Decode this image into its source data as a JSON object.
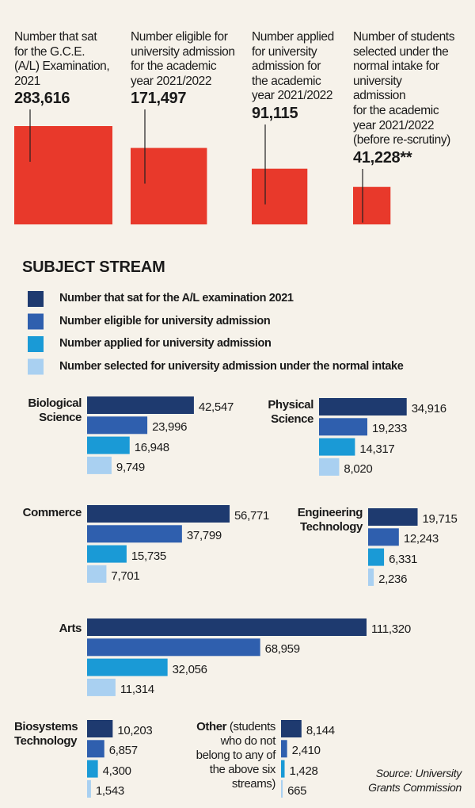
{
  "chart_data": [
    {
      "type": "bar",
      "categories": [
        "Number that sat\nfor the G.C.E.\n(A/L) Examination,\n2021",
        "Number eligible for\nuniversity admission\nfor the academic\nyear 2021/2022",
        "Number applied\nfor university\nadmission for\nthe academic\nyear 2021/2022",
        "Number of students\nselected under the\nnormal intake for\nuniversity\nadmission\nfor the academic\nyear 2021/2022\n(before re-scrutiny)"
      ],
      "values": [
        283616,
        171497,
        91115,
        41228
      ],
      "value_labels": [
        "283,616",
        "171,497",
        "91,115",
        "41,228**"
      ],
      "color": "#e8392b"
    },
    {
      "type": "hbar",
      "title": "SUBJECT STREAM",
      "categories": [
        "Biological\nScience",
        "Physical\nScience",
        "Commerce",
        "Engineering\nTechnology",
        "Arts",
        "Biosystems\nTechnology",
        "Other"
      ],
      "annotations": [
        "(students\nwho do not\nbelong to any of\nthe above six\nstreams)",
        "Source: University\nGrants Commission"
      ],
      "series": [
        {
          "name": "Number that sat for the A/L examination 2021",
          "color": "#1e3a6f",
          "values": [
            42547,
            34916,
            56771,
            19715,
            111320,
            10203,
            8144
          ],
          "value_labels": [
            "42,547",
            "34,916",
            "56,771",
            "19,715",
            "111,320",
            "10,203",
            "8,144"
          ]
        },
        {
          "name": "Number eligible for university admission",
          "color": "#2f5fae",
          "values": [
            23996,
            19233,
            37799,
            12243,
            68959,
            6857,
            2410
          ],
          "value_labels": [
            "23,996",
            "19,233",
            "37,799",
            "12,243",
            "68,959",
            "6,857",
            "2,410"
          ]
        },
        {
          "name": "Number applied for university admission",
          "color": "#1a9ad6",
          "values": [
            16948,
            14317,
            15735,
            6331,
            32056,
            4300,
            1428
          ],
          "value_labels": [
            "16,948",
            "14,317",
            "15,735",
            "6,331",
            "32,056",
            "4,300",
            "1,428"
          ]
        },
        {
          "name": "Number selected for university admission under the normal intake",
          "color": "#a9d0f1",
          "values": [
            9749,
            8020,
            7701,
            2236,
            11314,
            1543,
            665
          ],
          "value_labels": [
            "9,749",
            "8,020",
            "7,701",
            "2,236",
            "11,314",
            "1,543",
            "665"
          ]
        }
      ]
    }
  ]
}
